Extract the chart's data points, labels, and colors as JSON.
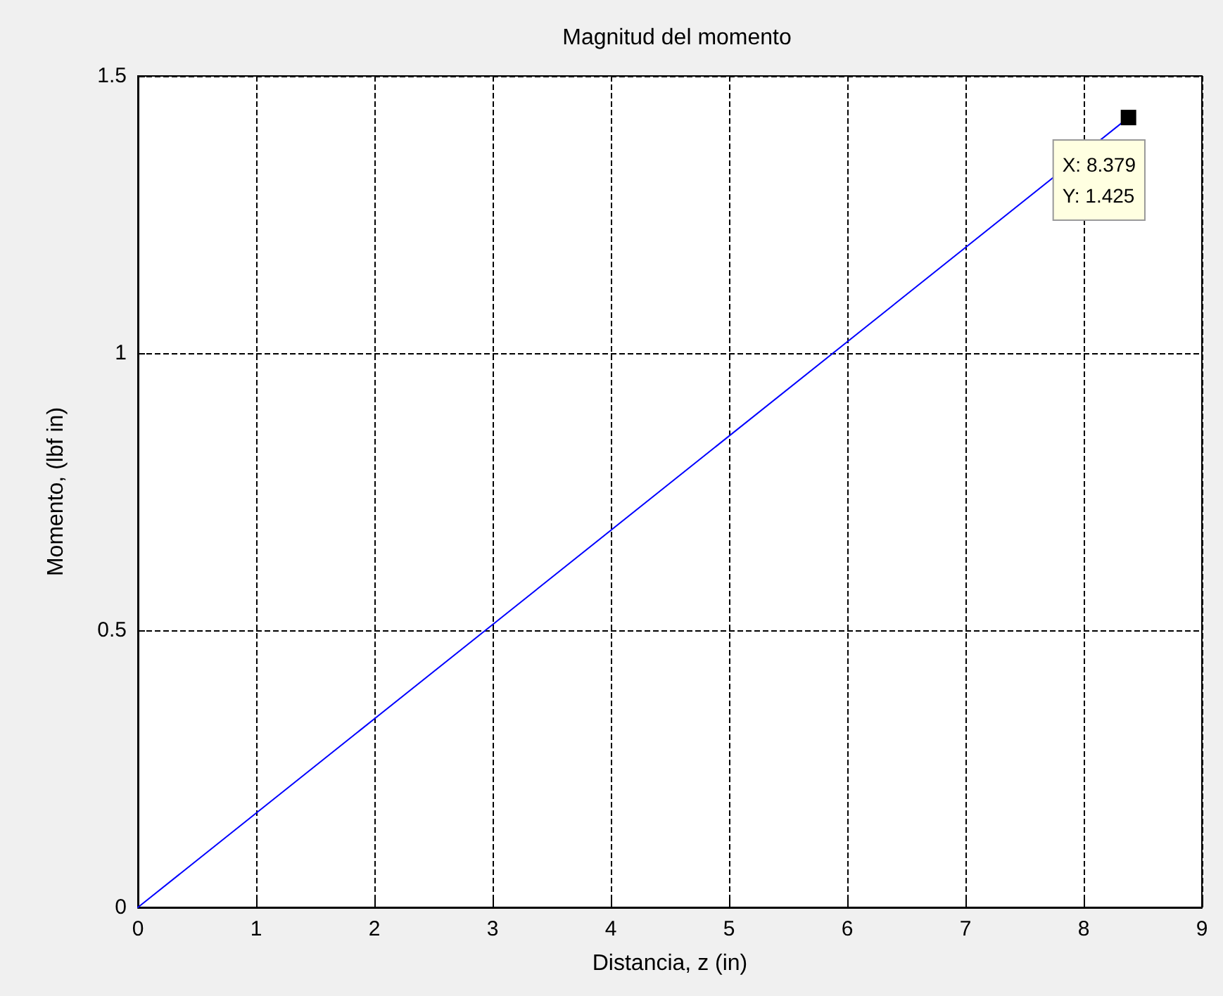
{
  "chart_data": {
    "type": "line",
    "title": "Magnitud del momento",
    "xlabel": "Distancia, z (in)",
    "ylabel": "Momento, (lbf in)",
    "x": [
      0,
      8.379
    ],
    "series": [
      {
        "color": "#0000ff",
        "values": [
          0,
          1.425
        ]
      }
    ],
    "xlim": [
      0,
      9
    ],
    "xticks": [
      0,
      1,
      2,
      3,
      4,
      5,
      6,
      7,
      8,
      9
    ],
    "ylim": [
      0,
      1.5
    ],
    "yticks": [
      0,
      0.5,
      1,
      1.5
    ],
    "grid": true,
    "line_style": "solid",
    "annotations": [
      {
        "text": "X: 8.379\nY: 1.425",
        "x": 8.379,
        "y": 1.425
      }
    ]
  }
}
